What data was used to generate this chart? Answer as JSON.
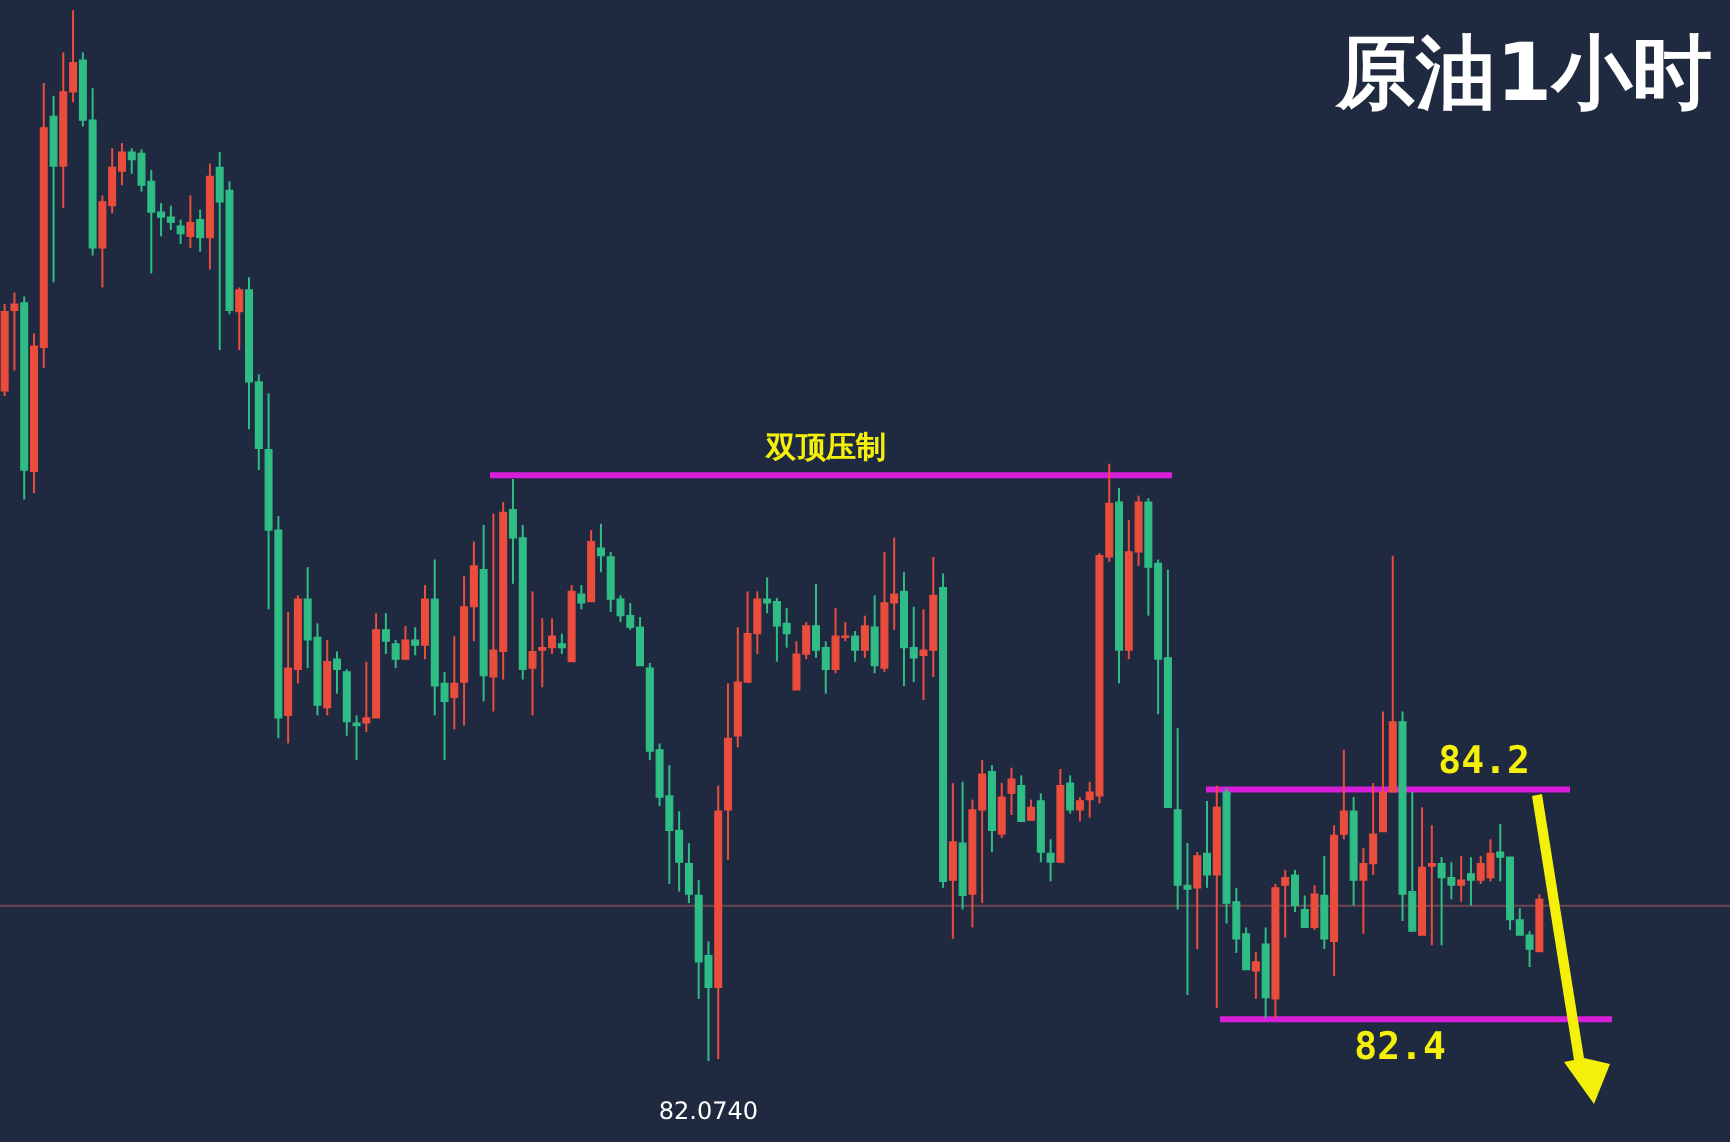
{
  "chart_data": {
    "type": "candlestick",
    "title": "原油1小时",
    "categories": [
      null,
      null,
      null,
      null,
      null,
      null,
      null,
      null,
      null,
      null,
      null,
      null,
      null,
      null,
      null,
      null,
      null,
      null,
      null,
      null,
      null,
      null,
      null,
      null,
      null,
      null,
      null,
      null,
      null,
      null,
      null,
      null,
      null,
      null,
      null,
      null,
      null,
      null,
      null,
      null,
      null,
      null,
      null,
      null,
      null,
      null,
      null,
      null,
      null,
      null,
      null,
      null,
      null,
      null,
      null,
      null,
      null,
      null,
      null,
      null,
      null,
      null,
      null,
      null,
      null,
      null,
      null,
      null,
      null,
      null,
      null,
      null,
      null,
      null,
      null,
      null,
      null,
      null,
      null,
      null,
      null,
      null,
      null,
      null,
      null,
      null,
      null,
      null,
      null,
      null,
      null,
      null,
      null,
      null,
      null,
      null,
      null,
      null,
      null,
      null,
      null,
      null,
      null,
      null,
      null,
      null,
      null,
      null,
      null,
      null,
      null,
      null,
      null,
      null,
      null,
      null,
      null,
      null,
      null,
      null,
      null,
      null,
      null,
      null,
      null,
      null,
      null,
      null,
      null,
      null,
      null,
      null,
      null,
      null,
      null,
      null,
      null,
      null,
      null,
      null,
      null,
      null,
      null,
      null,
      null,
      null,
      null,
      null,
      null,
      null,
      null,
      null,
      null,
      null,
      null,
      null,
      null,
      null
    ],
    "ohlc": [
      [
        87.32,
        88.0,
        87.28,
        87.94
      ],
      [
        87.95,
        88.09,
        87.48,
        88.0
      ],
      [
        88.01,
        88.06,
        86.47,
        86.7
      ],
      [
        86.69,
        87.77,
        86.52,
        87.67
      ],
      [
        87.66,
        89.73,
        87.5,
        89.38
      ],
      [
        89.47,
        89.63,
        88.17,
        89.08
      ],
      [
        89.08,
        89.97,
        88.75,
        89.66
      ],
      [
        89.66,
        90.3,
        89.58,
        89.89
      ],
      [
        89.91,
        89.97,
        89.39,
        89.44
      ],
      [
        89.44,
        89.69,
        88.38,
        88.44
      ],
      [
        88.44,
        88.85,
        88.13,
        88.8
      ],
      [
        88.77,
        89.22,
        88.71,
        89.07
      ],
      [
        89.04,
        89.26,
        88.93,
        89.19
      ],
      [
        89.19,
        89.22,
        89.02,
        89.13
      ],
      [
        89.18,
        89.21,
        88.88,
        88.93
      ],
      [
        88.96,
        89.05,
        88.24,
        88.72
      ],
      [
        88.72,
        88.79,
        88.53,
        88.68
      ],
      [
        88.68,
        88.77,
        88.58,
        88.64
      ],
      [
        88.61,
        88.66,
        88.47,
        88.55
      ],
      [
        88.53,
        88.85,
        88.44,
        88.64
      ],
      [
        88.66,
        88.74,
        88.41,
        88.52
      ],
      [
        88.52,
        89.1,
        88.27,
        89.0
      ],
      [
        89.07,
        89.19,
        87.64,
        88.8
      ],
      [
        88.89,
        88.96,
        87.92,
        87.95
      ],
      [
        87.94,
        88.13,
        87.64,
        88.11
      ],
      [
        88.11,
        88.21,
        87.02,
        87.39
      ],
      [
        87.39,
        87.45,
        86.7,
        86.87
      ],
      [
        86.86,
        87.3,
        85.61,
        86.23
      ],
      [
        86.23,
        86.34,
        84.6,
        84.76
      ],
      [
        84.78,
        85.59,
        84.56,
        85.15
      ],
      [
        85.14,
        85.72,
        85.03,
        85.69
      ],
      [
        85.69,
        85.94,
        85.15,
        85.37
      ],
      [
        85.39,
        85.5,
        84.78,
        84.86
      ],
      [
        84.84,
        85.37,
        84.78,
        85.2
      ],
      [
        85.22,
        85.28,
        84.95,
        85.14
      ],
      [
        85.12,
        85.14,
        84.62,
        84.73
      ],
      [
        84.72,
        84.78,
        84.43,
        84.7
      ],
      [
        84.72,
        85.2,
        84.65,
        84.76
      ],
      [
        84.76,
        85.58,
        84.76,
        85.45
      ],
      [
        85.45,
        85.58,
        85.26,
        85.36
      ],
      [
        85.34,
        85.37,
        85.15,
        85.22
      ],
      [
        85.22,
        85.48,
        85.22,
        85.37
      ],
      [
        85.37,
        85.47,
        85.25,
        85.33
      ],
      [
        85.33,
        85.8,
        85.22,
        85.69
      ],
      [
        85.69,
        86.0,
        84.78,
        85.01
      ],
      [
        85.03,
        85.12,
        84.43,
        84.89
      ],
      [
        84.92,
        85.4,
        84.67,
        85.03
      ],
      [
        85.04,
        85.87,
        84.7,
        85.63
      ],
      [
        85.63,
        86.14,
        85.36,
        85.95
      ],
      [
        85.92,
        86.27,
        84.89,
        85.09
      ],
      [
        85.08,
        86.36,
        84.81,
        85.29
      ],
      [
        85.28,
        86.45,
        85.06,
        86.37
      ],
      [
        86.39,
        86.63,
        85.81,
        86.17
      ],
      [
        86.17,
        86.27,
        85.06,
        85.14
      ],
      [
        85.15,
        85.75,
        84.78,
        85.28
      ],
      [
        85.29,
        85.54,
        85.0,
        85.31
      ],
      [
        85.31,
        85.54,
        85.26,
        85.4
      ],
      [
        85.34,
        85.42,
        85.26,
        85.31
      ],
      [
        85.2,
        85.8,
        85.2,
        85.75
      ],
      [
        85.73,
        85.8,
        85.61,
        85.66
      ],
      [
        85.67,
        86.23,
        85.67,
        86.14
      ],
      [
        86.09,
        86.28,
        85.9,
        86.03
      ],
      [
        86.02,
        86.06,
        85.59,
        85.69
      ],
      [
        85.69,
        85.72,
        85.51,
        85.56
      ],
      [
        85.56,
        85.66,
        85.45,
        85.47
      ],
      [
        85.47,
        85.55,
        85.17,
        85.17
      ],
      [
        85.15,
        85.19,
        84.43,
        84.5
      ],
      [
        84.51,
        84.56,
        84.07,
        84.14
      ],
      [
        84.15,
        84.39,
        83.46,
        83.88
      ],
      [
        83.88,
        84.03,
        83.4,
        83.63
      ],
      [
        83.62,
        83.78,
        83.31,
        83.38
      ],
      [
        83.37,
        83.49,
        82.56,
        82.85
      ],
      [
        82.9,
        83.01,
        82.074,
        82.65
      ],
      [
        82.65,
        84.23,
        82.09,
        84.03
      ],
      [
        84.04,
        85.03,
        83.65,
        84.6
      ],
      [
        84.62,
        85.47,
        84.53,
        85.04
      ],
      [
        85.04,
        85.75,
        85.04,
        85.42
      ],
      [
        85.42,
        85.75,
        85.26,
        85.69
      ],
      [
        85.69,
        85.86,
        85.58,
        85.66
      ],
      [
        85.67,
        85.7,
        85.2,
        85.48
      ],
      [
        85.5,
        85.62,
        85.31,
        85.42
      ],
      [
        84.98,
        85.36,
        84.98,
        85.26
      ],
      [
        85.26,
        85.51,
        85.22,
        85.48
      ],
      [
        85.48,
        85.81,
        85.23,
        85.29
      ],
      [
        85.31,
        85.36,
        84.95,
        85.14
      ],
      [
        85.14,
        85.62,
        85.11,
        85.4
      ],
      [
        85.39,
        85.51,
        85.36,
        85.4
      ],
      [
        85.4,
        85.44,
        85.2,
        85.29
      ],
      [
        85.29,
        85.56,
        85.23,
        85.48
      ],
      [
        85.47,
        85.72,
        85.11,
        85.17
      ],
      [
        85.15,
        86.06,
        85.12,
        85.66
      ],
      [
        85.66,
        86.17,
        85.45,
        85.73
      ],
      [
        85.75,
        85.9,
        85.01,
        85.31
      ],
      [
        85.31,
        85.63,
        85.04,
        85.23
      ],
      [
        85.25,
        85.61,
        84.9,
        85.29
      ],
      [
        85.29,
        86.02,
        85.08,
        85.72
      ],
      [
        85.78,
        85.89,
        83.43,
        83.48
      ],
      [
        83.49,
        84.25,
        83.03,
        83.79
      ],
      [
        83.78,
        84.26,
        83.26,
        83.37
      ],
      [
        83.38,
        84.12,
        83.12,
        84.04
      ],
      [
        84.04,
        84.43,
        83.31,
        84.32
      ],
      [
        84.34,
        84.39,
        83.71,
        83.88
      ],
      [
        83.85,
        84.25,
        83.82,
        84.14
      ],
      [
        84.17,
        84.37,
        84.0,
        84.28
      ],
      [
        84.23,
        84.31,
        83.95,
        83.95
      ],
      [
        83.96,
        84.12,
        83.96,
        84.06
      ],
      [
        84.11,
        84.17,
        83.63,
        83.71
      ],
      [
        83.7,
        83.81,
        83.48,
        83.63
      ],
      [
        83.63,
        84.36,
        83.63,
        84.23
      ],
      [
        84.25,
        84.31,
        84.01,
        84.04
      ],
      [
        84.04,
        84.14,
        83.95,
        84.11
      ],
      [
        84.12,
        84.26,
        83.98,
        84.18
      ],
      [
        84.15,
        86.05,
        84.09,
        86.03
      ],
      [
        86.02,
        86.75,
        85.98,
        86.44
      ],
      [
        86.45,
        86.56,
        85.03,
        85.29
      ],
      [
        85.29,
        86.31,
        85.22,
        86.06
      ],
      [
        86.06,
        86.5,
        85.95,
        86.45
      ],
      [
        86.45,
        86.48,
        85.56,
        85.94
      ],
      [
        85.97,
        86.0,
        84.79,
        85.22
      ],
      [
        85.23,
        85.92,
        84.06,
        84.06
      ],
      [
        84.04,
        84.68,
        83.26,
        83.45
      ],
      [
        83.45,
        83.78,
        82.59,
        83.42
      ],
      [
        83.43,
        83.71,
        82.95,
        83.68
      ],
      [
        83.7,
        84.11,
        83.43,
        83.53
      ],
      [
        83.53,
        84.23,
        82.49,
        84.06
      ],
      [
        84.18,
        84.21,
        83.15,
        83.31
      ],
      [
        83.32,
        83.43,
        82.92,
        83.03
      ],
      [
        83.07,
        83.12,
        82.79,
        82.79
      ],
      [
        82.78,
        82.93,
        82.56,
        82.85
      ],
      [
        82.99,
        83.12,
        82.41,
        82.57
      ],
      [
        82.56,
        83.46,
        82.41,
        83.43
      ],
      [
        83.45,
        83.57,
        83.04,
        83.51
      ],
      [
        83.53,
        83.57,
        83.24,
        83.29
      ],
      [
        83.26,
        83.37,
        83.12,
        83.12
      ],
      [
        83.12,
        83.45,
        83.1,
        83.38
      ],
      [
        83.37,
        83.68,
        82.95,
        83.03
      ],
      [
        83.01,
        83.92,
        82.74,
        83.84
      ],
      [
        83.85,
        84.51,
        83.81,
        84.03
      ],
      [
        84.03,
        84.14,
        83.29,
        83.49
      ],
      [
        83.49,
        83.74,
        83.07,
        83.62
      ],
      [
        83.62,
        84.25,
        83.53,
        83.85
      ],
      [
        83.87,
        84.81,
        83.87,
        84.18
      ],
      [
        84.18,
        86.03,
        84.18,
        84.73
      ],
      [
        84.73,
        84.81,
        83.17,
        83.38
      ],
      [
        83.4,
        84.18,
        83.09,
        83.09
      ],
      [
        83.06,
        84.06,
        83.06,
        83.59
      ],
      [
        83.6,
        83.92,
        82.98,
        83.62
      ],
      [
        83.62,
        83.67,
        82.98,
        83.51
      ],
      [
        83.51,
        83.63,
        83.34,
        83.45
      ],
      [
        83.45,
        83.68,
        83.32,
        83.49
      ],
      [
        83.54,
        83.67,
        83.29,
        83.49
      ],
      [
        83.49,
        83.68,
        83.46,
        83.62
      ],
      [
        83.51,
        83.81,
        83.48,
        83.7
      ],
      [
        83.71,
        83.93,
        83.48,
        83.67
      ],
      [
        83.67,
        83.67,
        83.1,
        83.18
      ],
      [
        83.18,
        83.27,
        83.06,
        83.06
      ],
      [
        83.06,
        83.09,
        82.81,
        82.95
      ],
      [
        82.93,
        83.38,
        82.93,
        83.34
      ]
    ],
    "colors": [
      "#eb4d3d",
      "#eb4d3d",
      "#2fbd85",
      "#eb4d3d",
      "#eb4d3d",
      "#2fbd85",
      "#eb4d3d",
      "#eb4d3d",
      "#2fbd85",
      "#2fbd85",
      "#eb4d3d",
      "#eb4d3d",
      "#eb4d3d",
      "#2fbd85",
      "#2fbd85",
      "#2fbd85",
      "#2fbd85",
      "#2fbd85",
      "#2fbd85",
      "#eb4d3d",
      "#2fbd85",
      "#eb4d3d",
      "#2fbd85",
      "#2fbd85",
      "#eb4d3d",
      "#2fbd85",
      "#2fbd85",
      "#2fbd85",
      "#2fbd85",
      "#eb4d3d",
      "#eb4d3d",
      "#2fbd85",
      "#2fbd85",
      "#eb4d3d",
      "#2fbd85",
      "#2fbd85",
      "#2fbd85",
      "#eb4d3d",
      "#eb4d3d",
      "#2fbd85",
      "#2fbd85",
      "#eb4d3d",
      "#2fbd85",
      "#eb4d3d",
      "#2fbd85",
      "#2fbd85",
      "#eb4d3d",
      "#eb4d3d",
      "#eb4d3d",
      "#2fbd85",
      "#eb4d3d",
      "#eb4d3d",
      "#2fbd85",
      "#2fbd85",
      "#eb4d3d",
      "#eb4d3d",
      "#eb4d3d",
      "#2fbd85",
      "#eb4d3d",
      "#2fbd85",
      "#eb4d3d",
      "#2fbd85",
      "#2fbd85",
      "#2fbd85",
      "#2fbd85",
      "#2fbd85",
      "#2fbd85",
      "#2fbd85",
      "#2fbd85",
      "#2fbd85",
      "#2fbd85",
      "#2fbd85",
      "#2fbd85",
      "#eb4d3d",
      "#eb4d3d",
      "#eb4d3d",
      "#eb4d3d",
      "#eb4d3d",
      "#2fbd85",
      "#2fbd85",
      "#2fbd85",
      "#eb4d3d",
      "#eb4d3d",
      "#2fbd85",
      "#2fbd85",
      "#eb4d3d",
      "#eb4d3d",
      "#2fbd85",
      "#eb4d3d",
      "#2fbd85",
      "#eb4d3d",
      "#eb4d3d",
      "#2fbd85",
      "#2fbd85",
      "#eb4d3d",
      "#eb4d3d",
      "#2fbd85",
      "#eb4d3d",
      "#2fbd85",
      "#eb4d3d",
      "#eb4d3d",
      "#2fbd85",
      "#eb4d3d",
      "#eb4d3d",
      "#2fbd85",
      "#eb4d3d",
      "#2fbd85",
      "#2fbd85",
      "#eb4d3d",
      "#2fbd85",
      "#eb4d3d",
      "#eb4d3d",
      "#eb4d3d",
      "#eb4d3d",
      "#2fbd85",
      "#eb4d3d",
      "#eb4d3d",
      "#2fbd85",
      "#2fbd85",
      "#2fbd85",
      "#2fbd85",
      "#2fbd85",
      "#eb4d3d",
      "#2fbd85",
      "#eb4d3d",
      "#2fbd85",
      "#2fbd85",
      "#2fbd85",
      "#eb4d3d",
      "#2fbd85",
      "#eb4d3d",
      "#eb4d3d",
      "#2fbd85",
      "#2fbd85",
      "#eb4d3d",
      "#2fbd85",
      "#eb4d3d",
      "#eb4d3d",
      "#2fbd85",
      "#eb4d3d",
      "#eb4d3d",
      "#eb4d3d",
      "#eb4d3d",
      "#2fbd85",
      "#2fbd85",
      "#eb4d3d",
      "#eb4d3d",
      "#2fbd85",
      "#2fbd85",
      "#eb4d3d",
      "#2fbd85",
      "#eb4d3d",
      "#eb4d3d",
      "#2fbd85",
      "#2fbd85",
      "#2fbd85",
      "#2fbd85",
      "#eb4d3d"
    ],
    "ylim": [
      81.44,
      90.38
    ],
    "ref_lines": [
      {
        "axis": "y",
        "value": 86.66,
        "label": "双顶压制",
        "color": "#d81ed8"
      },
      {
        "axis": "y",
        "value": 84.2,
        "label": "84.2",
        "color": "#d81ed8"
      },
      {
        "axis": "y",
        "value": 82.4,
        "label": "82.4",
        "color": "#d81ed8"
      },
      {
        "axis": "y",
        "value": 83.29,
        "color": "#6e4650"
      }
    ],
    "annotations": [
      {
        "text": "82.0740",
        "y": 82.074
      }
    ]
  }
}
